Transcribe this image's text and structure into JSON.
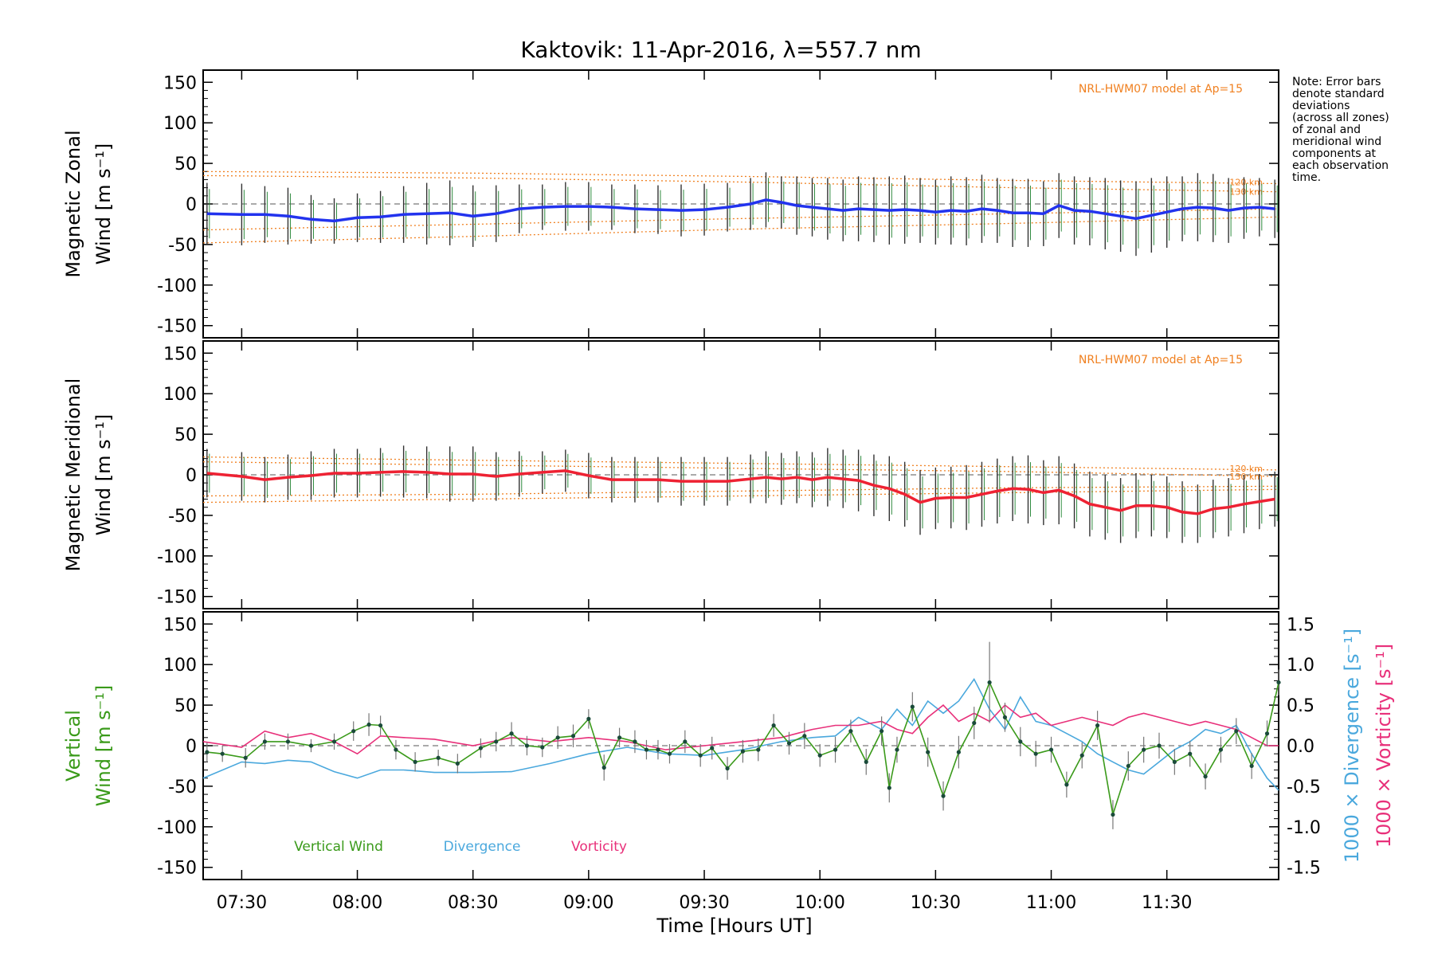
{
  "chart_data": {
    "type": "line",
    "title": "Kaktovik: 11-Apr-2016, λ=557.7 nm",
    "note": "Note: Error bars\ndenote standard\ndeviations\n(across all zones)\nof zonal and\nmeridional wind\ncomponents at\neach observation\ntime.",
    "xlabel": "Time [Hours UT]",
    "x_ticks": [
      "07:30",
      "08:00",
      "08:30",
      "09:00",
      "09:30",
      "10:00",
      "10:30",
      "11:00",
      "11:30"
    ],
    "xlim": [
      "07:20",
      "11:59"
    ],
    "ylim": [
      -165,
      165
    ],
    "y_ticks": [
      150,
      100,
      50,
      0,
      -50,
      -100,
      -150
    ],
    "colors": {
      "zonal": "#2233ee",
      "meridional": "#ee2233",
      "model": "#f08020",
      "vertical": "#3a9a1a",
      "divergence": "#4aa8dd",
      "vorticity": "#e8307a",
      "zone_points": "#9a9ae0"
    },
    "panels": [
      {
        "id": "zonal",
        "ylabel_line1": "Magnetic Zonal",
        "ylabel_line2": "Wind [m s⁻¹]",
        "model_label": "NRL-HWM07 model at Ap=15",
        "model_heights": [
          "120 km",
          "130 km"
        ],
        "series": [
          {
            "name": "Magnetic Zonal Wind",
            "x": [
              "07:21",
              "07:30",
              "07:36",
              "07:42",
              "07:48",
              "07:54",
              "08:00",
              "08:06",
              "08:12",
              "08:18",
              "08:24",
              "08:30",
              "08:36",
              "08:42",
              "08:48",
              "08:54",
              "09:00",
              "09:06",
              "09:12",
              "09:18",
              "09:24",
              "09:30",
              "09:36",
              "09:42",
              "09:46",
              "09:50",
              "09:54",
              "09:58",
              "10:02",
              "10:06",
              "10:10",
              "10:14",
              "10:18",
              "10:22",
              "10:26",
              "10:30",
              "10:34",
              "10:38",
              "10:42",
              "10:46",
              "10:50",
              "10:54",
              "10:58",
              "11:02",
              "11:06",
              "11:10",
              "11:14",
              "11:18",
              "11:22",
              "11:26",
              "11:30",
              "11:34",
              "11:38",
              "11:42",
              "11:46",
              "11:50",
              "11:54",
              "11:58"
            ],
            "y": [
              -12,
              -13,
              -13,
              -15,
              -19,
              -21,
              -17,
              -16,
              -13,
              -12,
              -11,
              -15,
              -12,
              -6,
              -4,
              -3,
              -3,
              -4,
              -6,
              -7,
              -8,
              -7,
              -4,
              0,
              5,
              2,
              -2,
              -4,
              -6,
              -8,
              -6,
              -7,
              -8,
              -7,
              -8,
              -10,
              -8,
              -9,
              -6,
              -8,
              -11,
              -11,
              -12,
              -2,
              -8,
              -9,
              -12,
              -15,
              -18,
              -14,
              -10,
              -6,
              -4,
              -5,
              -8,
              -5,
              -4,
              -6
            ],
            "err": [
              38,
              38,
              35,
              35,
              30,
              28,
              30,
              32,
              35,
              38,
              40,
              38,
              35,
              30,
              28,
              30,
              30,
              28,
              30,
              30,
              32,
              32,
              30,
              32,
              34,
              32,
              36,
              36,
              38,
              38,
              40,
              40,
              42,
              42,
              40,
              40,
              42,
              42,
              42,
              40,
              42,
              42,
              40,
              40,
              42,
              42,
              44,
              44,
              46,
              46,
              44,
              40,
              42,
              42,
              40,
              38,
              36,
              36
            ]
          }
        ],
        "model": {
          "x": [
            "07:20",
            "08:30",
            "09:40",
            "10:50",
            "11:59"
          ],
          "upper_1": [
            40,
            38,
            34,
            29,
            25
          ],
          "upper_2": [
            35,
            32,
            27,
            20,
            15
          ],
          "lower_1": [
            -32,
            -25,
            -18,
            -12,
            -6
          ],
          "lower_2": [
            -48,
            -40,
            -31,
            -24,
            -16
          ]
        }
      },
      {
        "id": "meridional",
        "ylabel_line1": "Magnetic Meridional",
        "ylabel_line2": "Wind [m s⁻¹]",
        "model_label": "NRL-HWM07 model at Ap=15",
        "model_heights": [
          "120 km",
          "130 km"
        ],
        "series": [
          {
            "name": "Magnetic Meridional Wind",
            "x": [
              "07:21",
              "07:30",
              "07:36",
              "07:42",
              "07:48",
              "07:54",
              "08:00",
              "08:06",
              "08:12",
              "08:18",
              "08:24",
              "08:30",
              "08:36",
              "08:42",
              "08:48",
              "08:54",
              "09:00",
              "09:06",
              "09:12",
              "09:18",
              "09:24",
              "09:30",
              "09:36",
              "09:42",
              "09:46",
              "09:50",
              "09:54",
              "09:58",
              "10:02",
              "10:06",
              "10:10",
              "10:14",
              "10:18",
              "10:22",
              "10:26",
              "10:30",
              "10:34",
              "10:38",
              "10:42",
              "10:46",
              "10:50",
              "10:54",
              "10:58",
              "11:02",
              "11:06",
              "11:10",
              "11:14",
              "11:18",
              "11:22",
              "11:26",
              "11:30",
              "11:34",
              "11:38",
              "11:42",
              "11:46",
              "11:50",
              "11:54",
              "11:58"
            ],
            "y": [
              2,
              -2,
              -6,
              -3,
              -1,
              2,
              2,
              3,
              4,
              3,
              1,
              1,
              -2,
              1,
              3,
              5,
              -1,
              -6,
              -6,
              -6,
              -8,
              -8,
              -8,
              -5,
              -3,
              -5,
              -3,
              -6,
              -3,
              -5,
              -7,
              -13,
              -17,
              -24,
              -34,
              -29,
              -28,
              -28,
              -24,
              -20,
              -17,
              -18,
              -22,
              -19,
              -26,
              -36,
              -40,
              -44,
              -38,
              -38,
              -40,
              -46,
              -48,
              -42,
              -40,
              -36,
              -33,
              -30
            ],
            "err": [
              30,
              30,
              28,
              28,
              30,
              30,
              30,
              30,
              32,
              32,
              34,
              34,
              30,
              28,
              26,
              26,
              28,
              28,
              28,
              28,
              30,
              30,
              30,
              30,
              32,
              32,
              32,
              34,
              36,
              36,
              38,
              38,
              40,
              40,
              40,
              38,
              38,
              40,
              40,
              40,
              40,
              42,
              40,
              42,
              40,
              40,
              40,
              40,
              40,
              38,
              38,
              38,
              36,
              36,
              36,
              36,
              34,
              34
            ]
          }
        ],
        "model": {
          "x": [
            "07:20",
            "08:30",
            "09:40",
            "10:50",
            "11:59"
          ],
          "upper_1": [
            22,
            18,
            14,
            10,
            6
          ],
          "upper_2": [
            16,
            12,
            8,
            4,
            -2
          ],
          "lower_1": [
            -26,
            -24,
            -20,
            -16,
            -14
          ],
          "lower_2": [
            -34,
            -30,
            -26,
            -22,
            -18
          ]
        }
      },
      {
        "id": "vertical",
        "ylabel_line1": "Vertical",
        "ylabel_line2": "Wind [m s⁻¹]",
        "y2label_1": "1000 × Divergence [s⁻¹]",
        "y2label_2": "1000 × Vorticity [s⁻¹]",
        "y2lim": [
          -1.65,
          1.65
        ],
        "y2_ticks": [
          "1.5",
          "1.0",
          "0.5",
          "0.0",
          "-0.5",
          "-1.0",
          "-1.5"
        ],
        "legend": {
          "vertical": "Vertical Wind",
          "divergence": "Divergence",
          "vorticity": "Vorticity"
        },
        "series": [
          {
            "name": "Vertical Wind",
            "x": [
              "07:21",
              "07:25",
              "07:31",
              "07:36",
              "07:42",
              "07:48",
              "07:54",
              "07:59",
              "08:03",
              "08:06",
              "08:10",
              "08:15",
              "08:21",
              "08:26",
              "08:32",
              "08:36",
              "08:40",
              "08:44",
              "08:48",
              "08:52",
              "08:56",
              "09:00",
              "09:04",
              "09:08",
              "09:12",
              "09:15",
              "09:18",
              "09:21",
              "09:25",
              "09:29",
              "09:32",
              "09:36",
              "09:40",
              "09:44",
              "09:48",
              "09:52",
              "09:56",
              "10:00",
              "10:04",
              "10:08",
              "10:12",
              "10:16",
              "10:18",
              "10:20",
              "10:24",
              "10:28",
              "10:32",
              "10:36",
              "10:40",
              "10:44",
              "10:48",
              "10:52",
              "10:56",
              "11:00",
              "11:04",
              "11:08",
              "11:12",
              "11:16",
              "11:20",
              "11:24",
              "11:28",
              "11:32",
              "11:36",
              "11:40",
              "11:44",
              "11:48",
              "11:52",
              "11:56",
              "11:59"
            ],
            "y": [
              -8,
              -10,
              -15,
              5,
              5,
              0,
              5,
              18,
              26,
              25,
              -5,
              -20,
              -15,
              -22,
              -3,
              5,
              15,
              0,
              -2,
              10,
              12,
              33,
              -27,
              10,
              5,
              -5,
              -5,
              -10,
              5,
              -12,
              -3,
              -28,
              -7,
              -5,
              25,
              3,
              12,
              -12,
              -5,
              18,
              -20,
              18,
              -52,
              -5,
              48,
              -8,
              -62,
              -8,
              28,
              78,
              35,
              5,
              -10,
              -5,
              -48,
              -12,
              25,
              -85,
              -25,
              -5,
              0,
              -20,
              -10,
              -38,
              -5,
              18,
              -25,
              15,
              78
            ],
            "err": [
              12,
              10,
              12,
              10,
              10,
              8,
              10,
              12,
              14,
              12,
              12,
              12,
              10,
              12,
              12,
              12,
              14,
              12,
              12,
              14,
              14,
              12,
              16,
              12,
              14,
              12,
              12,
              12,
              14,
              14,
              14,
              14,
              14,
              14,
              14,
              14,
              16,
              14,
              16,
              14,
              16,
              18,
              18,
              16,
              18,
              18,
              18,
              20,
              20,
              50,
              18,
              18,
              16,
              16,
              16,
              16,
              18,
              18,
              18,
              16,
              16,
              16,
              16,
              16,
              16,
              16,
              16,
              16,
              16
            ]
          },
          {
            "name": "Divergence",
            "axis": "right",
            "x": [
              "07:20",
              "07:30",
              "07:36",
              "07:42",
              "07:48",
              "07:54",
              "08:00",
              "08:06",
              "08:12",
              "08:20",
              "08:30",
              "08:40",
              "08:50",
              "09:00",
              "09:10",
              "09:20",
              "09:30",
              "09:40",
              "09:50",
              "09:58",
              "10:04",
              "10:10",
              "10:16",
              "10:20",
              "10:24",
              "10:28",
              "10:32",
              "10:36",
              "10:40",
              "10:44",
              "10:48",
              "10:52",
              "10:56",
              "11:00",
              "11:04",
              "11:08",
              "11:12",
              "11:16",
              "11:20",
              "11:24",
              "11:28",
              "11:32",
              "11:36",
              "11:40",
              "11:44",
              "11:48",
              "11:52",
              "11:56",
              "11:59"
            ],
            "y": [
              -0.4,
              -0.2,
              -0.22,
              -0.18,
              -0.2,
              -0.32,
              -0.4,
              -0.3,
              -0.3,
              -0.33,
              -0.33,
              -0.32,
              -0.22,
              -0.1,
              -0.02,
              -0.1,
              -0.12,
              -0.05,
              0.05,
              0.1,
              0.12,
              0.35,
              0.2,
              0.45,
              0.25,
              0.55,
              0.4,
              0.55,
              0.82,
              0.45,
              0.2,
              0.6,
              0.3,
              0.25,
              0.15,
              0.05,
              -0.1,
              -0.2,
              -0.3,
              -0.35,
              -0.2,
              -0.05,
              0.05,
              0.2,
              0.15,
              0.25,
              -0.1,
              -0.4,
              -0.55
            ]
          },
          {
            "name": "Vorticity",
            "axis": "right",
            "x": [
              "07:20",
              "07:30",
              "07:36",
              "07:42",
              "07:48",
              "07:54",
              "08:00",
              "08:06",
              "08:12",
              "08:20",
              "08:30",
              "08:40",
              "08:50",
              "09:00",
              "09:10",
              "09:20",
              "09:30",
              "09:40",
              "09:50",
              "09:58",
              "10:04",
              "10:10",
              "10:16",
              "10:20",
              "10:24",
              "10:28",
              "10:32",
              "10:36",
              "10:40",
              "10:44",
              "10:48",
              "10:52",
              "10:56",
              "11:00",
              "11:04",
              "11:08",
              "11:12",
              "11:16",
              "11:20",
              "11:24",
              "11:28",
              "11:32",
              "11:36",
              "11:40",
              "11:44",
              "11:48",
              "11:52",
              "11:56",
              "11:59"
            ],
            "y": [
              0.05,
              -0.02,
              0.18,
              0.1,
              0.15,
              0.05,
              -0.1,
              0.12,
              0.1,
              0.08,
              0.0,
              0.1,
              0.05,
              0.1,
              0.05,
              -0.05,
              0.0,
              0.05,
              0.1,
              0.2,
              0.25,
              0.25,
              0.3,
              0.2,
              0.15,
              0.35,
              0.5,
              0.3,
              0.4,
              0.3,
              0.5,
              0.35,
              0.4,
              0.25,
              0.3,
              0.35,
              0.3,
              0.25,
              0.35,
              0.4,
              0.35,
              0.3,
              0.25,
              0.3,
              0.25,
              0.2,
              0.1,
              0.0,
              0.0
            ]
          }
        ]
      }
    ]
  }
}
